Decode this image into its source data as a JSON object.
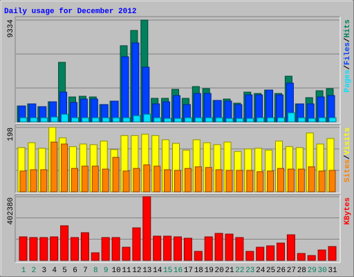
{
  "chart_data": [
    {
      "type": "bar",
      "title": "Daily usage for December 2012",
      "legend_separator": "/",
      "ylim": [
        0,
        9334
      ],
      "yticks": [
        9334
      ],
      "series": [
        {
          "name": "Hits",
          "color": "#00805c",
          "values": [
            1461,
            1651,
            1397,
            1842,
            5461,
            2286,
            2350,
            2286,
            1588,
            1905,
            6985,
            8382,
            9334,
            2159,
            2159,
            2985,
            2159,
            3239,
            3048,
            1969,
            2096,
            1715,
            2731,
            2604,
            2921,
            2604,
            4191,
            1651,
            2223,
            2858,
            3048
          ]
        },
        {
          "name": "Files",
          "color": "#0040ff",
          "values": [
            1461,
            1651,
            1397,
            1842,
            2731,
            1778,
            2096,
            2096,
            1588,
            1905,
            5969,
            7239,
            5017,
            1651,
            1842,
            2413,
            1588,
            2604,
            2604,
            1969,
            1905,
            1588,
            2477,
            2477,
            2921,
            2477,
            3556,
            1651,
            1651,
            2286,
            2413
          ]
        },
        {
          "name": "Pages",
          "color": "#00e0ff",
          "values": [
            380,
            380,
            380,
            445,
            700,
            380,
            380,
            380,
            380,
            380,
            380,
            570,
            700,
            380,
            320,
            320,
            380,
            380,
            380,
            380,
            320,
            320,
            320,
            380,
            380,
            380,
            830,
            380,
            320,
            380,
            380
          ]
        }
      ]
    },
    {
      "type": "bar",
      "legend_separator": "/",
      "ylim": [
        0,
        198
      ],
      "yticks": [
        198
      ],
      "series": [
        {
          "name": "Visits",
          "color": "#ffff00",
          "values": [
            136,
            151,
            134,
            198,
            166,
            139,
            147,
            145,
            156,
            130,
            173,
            173,
            177,
            173,
            160,
            149,
            128,
            160,
            151,
            145,
            153,
            124,
            132,
            134,
            128,
            156,
            139,
            136,
            181,
            147,
            164
          ]
        },
        {
          "name": "Sites",
          "color": "#ff8000",
          "values": [
            64,
            68,
            68,
            153,
            147,
            72,
            79,
            79,
            70,
            106,
            64,
            72,
            83,
            79,
            68,
            66,
            72,
            77,
            75,
            68,
            66,
            66,
            66,
            62,
            64,
            72,
            70,
            70,
            77,
            64,
            66
          ]
        }
      ]
    },
    {
      "type": "bar",
      "ylim": [
        0,
        402380
      ],
      "yticks": [
        402380
      ],
      "categories": [
        "1",
        "2",
        "3",
        "4",
        "5",
        "6",
        "7",
        "8",
        "9",
        "10",
        "11",
        "12",
        "13",
        "14",
        "15",
        "16",
        "17",
        "18",
        "19",
        "20",
        "21",
        "22",
        "23",
        "24",
        "25",
        "26",
        "27",
        "28",
        "29",
        "30",
        "31"
      ],
      "category_colors": [
        "#00805c",
        "#00805c",
        "#000000",
        "#000000",
        "#000000",
        "#000000",
        "#000000",
        "#00805c",
        "#00805c",
        "#000000",
        "#000000",
        "#000000",
        "#000000",
        "#000000",
        "#00805c",
        "#00805c",
        "#000000",
        "#000000",
        "#000000",
        "#000000",
        "#000000",
        "#00805c",
        "#00805c",
        "#000000",
        "#000000",
        "#000000",
        "#000000",
        "#000000",
        "#00805c",
        "#00805c",
        "#000000"
      ],
      "series": [
        {
          "name": "KBytes",
          "color": "#ff0000",
          "values": [
            148700,
            144300,
            144300,
            148700,
            218700,
            144300,
            174960,
            48100,
            144300,
            144300,
            83100,
            205600,
            402380,
            153100,
            153100,
            148700,
            139970,
            56900,
            148700,
            170600,
            166200,
            144300,
            56900,
            83100,
            91850,
            109350,
            161800,
            43700,
            30600,
            65600,
            87500
          ]
        }
      ]
    }
  ]
}
